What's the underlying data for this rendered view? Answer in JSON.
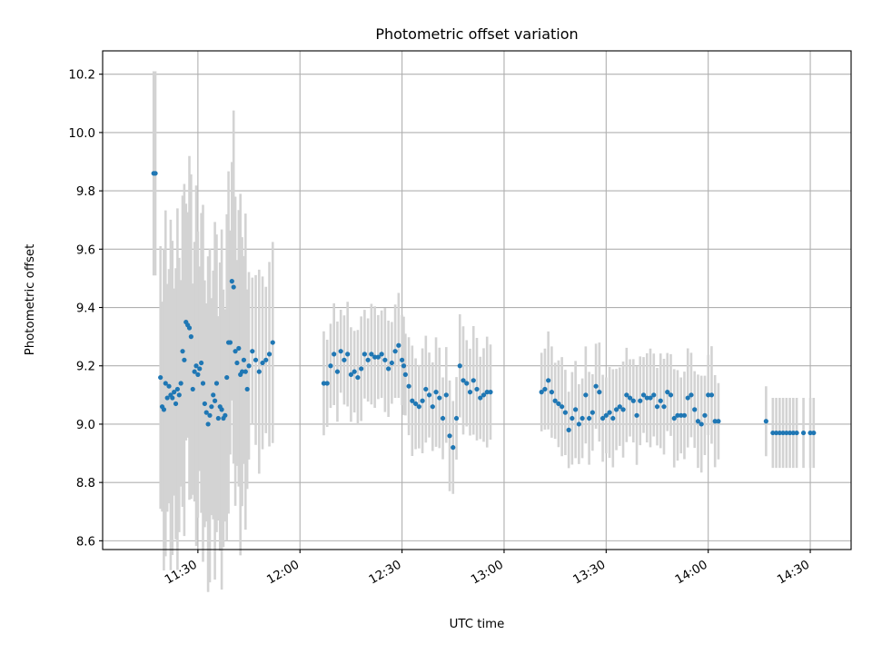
{
  "chart_data": {
    "type": "scatter",
    "title": "Photometric offset variation",
    "xlabel": "UTC time",
    "ylabel": "Photometric offset",
    "x_unit": "minutes past midnight UTC",
    "xlim": [
      "11:02",
      "14:42"
    ],
    "ylim": [
      8.57,
      10.28
    ],
    "x_ticks": [
      "11:30",
      "12:00",
      "12:30",
      "13:00",
      "13:30",
      "14:00",
      "14:30"
    ],
    "y_ticks": [
      "8.6",
      "8.8",
      "9.0",
      "9.2",
      "9.4",
      "9.6",
      "9.8",
      "10.0",
      "10.2"
    ],
    "grid": true,
    "point_color": "#1f77b4",
    "errorbar_color": "#d3d3d3",
    "segments": [
      {
        "start": "11:17",
        "end": "11:44",
        "error": [
          0.35,
          0.62
        ],
        "points": [
          [
            "11:17",
            9.86
          ],
          [
            "11:17.5",
            9.86
          ],
          [
            "11:19",
            9.16
          ],
          [
            "11:19.5",
            9.06
          ],
          [
            "11:20",
            9.05
          ],
          [
            "11:20.5",
            9.14
          ],
          [
            "11:21",
            9.09
          ],
          [
            "11:21.5",
            9.13
          ],
          [
            "11:22",
            9.1
          ],
          [
            "11:22.5",
            9.09
          ],
          [
            "11:23",
            9.11
          ],
          [
            "11:23.5",
            9.07
          ],
          [
            "11:24",
            9.12
          ],
          [
            "11:24.5",
            9.1
          ],
          [
            "11:25",
            9.14
          ],
          [
            "11:25.5",
            9.25
          ],
          [
            "11:26",
            9.22
          ],
          [
            "11:26.5",
            9.35
          ],
          [
            "11:27",
            9.34
          ],
          [
            "11:27.5",
            9.33
          ],
          [
            "11:28",
            9.3
          ],
          [
            "11:28.5",
            9.12
          ],
          [
            "11:29",
            9.18
          ],
          [
            "11:29.5",
            9.2
          ],
          [
            "11:30",
            9.17
          ],
          [
            "11:30.5",
            9.19
          ],
          [
            "11:31",
            9.21
          ],
          [
            "11:31.5",
            9.14
          ],
          [
            "11:32",
            9.07
          ],
          [
            "11:32.5",
            9.04
          ],
          [
            "11:33",
            9.0
          ],
          [
            "11:33.5",
            9.03
          ],
          [
            "11:34",
            9.06
          ],
          [
            "11:34.5",
            9.1
          ],
          [
            "11:35",
            9.08
          ],
          [
            "11:35.5",
            9.14
          ],
          [
            "11:36",
            9.02
          ],
          [
            "11:36.5",
            9.06
          ],
          [
            "11:37",
            9.05
          ],
          [
            "11:37.5",
            9.02
          ],
          [
            "11:38",
            9.03
          ],
          [
            "11:38.5",
            9.16
          ],
          [
            "11:39",
            9.28
          ],
          [
            "11:39.5",
            9.28
          ],
          [
            "11:40",
            9.49
          ],
          [
            "11:40.5",
            9.47
          ],
          [
            "11:41",
            9.25
          ],
          [
            "11:41.5",
            9.21
          ],
          [
            "11:42",
            9.26
          ],
          [
            "11:42.5",
            9.17
          ],
          [
            "11:43",
            9.18
          ],
          [
            "11:43.5",
            9.22
          ],
          [
            "11:44",
            9.18
          ]
        ]
      },
      {
        "start": "11:44",
        "end": "11:52",
        "error": [
          0.25,
          0.35
        ],
        "points": [
          [
            "11:44.5",
            9.12
          ],
          [
            "11:45",
            9.2
          ],
          [
            "11:46",
            9.25
          ],
          [
            "11:47",
            9.22
          ],
          [
            "11:48",
            9.18
          ],
          [
            "11:49",
            9.21
          ],
          [
            "11:50",
            9.22
          ],
          [
            "11:51",
            9.24
          ],
          [
            "11:52",
            9.28
          ]
        ]
      },
      {
        "start": "12:07",
        "end": "12:30",
        "error": [
          0.14,
          0.18
        ],
        "points": [
          [
            "12:07",
            9.14
          ],
          [
            "12:08",
            9.14
          ],
          [
            "12:09",
            9.2
          ],
          [
            "12:10",
            9.24
          ],
          [
            "12:11",
            9.18
          ],
          [
            "12:12",
            9.25
          ],
          [
            "12:13",
            9.22
          ],
          [
            "12:14",
            9.24
          ],
          [
            "12:15",
            9.17
          ],
          [
            "12:16",
            9.18
          ],
          [
            "12:17",
            9.16
          ],
          [
            "12:18",
            9.19
          ],
          [
            "12:19",
            9.24
          ],
          [
            "12:20",
            9.22
          ],
          [
            "12:21",
            9.24
          ],
          [
            "12:22",
            9.23
          ],
          [
            "12:23",
            9.23
          ],
          [
            "12:24",
            9.24
          ],
          [
            "12:25",
            9.22
          ],
          [
            "12:26",
            9.19
          ],
          [
            "12:27",
            9.21
          ],
          [
            "12:28",
            9.25
          ],
          [
            "12:29",
            9.27
          ],
          [
            "12:30",
            9.22
          ]
        ]
      },
      {
        "start": "12:30",
        "end": "12:56",
        "error": [
          0.14,
          0.19
        ],
        "points": [
          [
            "12:30.5",
            9.2
          ],
          [
            "12:31",
            9.17
          ],
          [
            "12:32",
            9.13
          ],
          [
            "12:33",
            9.08
          ],
          [
            "12:34",
            9.07
          ],
          [
            "12:35",
            9.06
          ],
          [
            "12:36",
            9.08
          ],
          [
            "12:37",
            9.12
          ],
          [
            "12:38",
            9.1
          ],
          [
            "12:39",
            9.06
          ],
          [
            "12:40",
            9.11
          ],
          [
            "12:41",
            9.09
          ],
          [
            "12:42",
            9.02
          ],
          [
            "12:43",
            9.1
          ],
          [
            "12:44",
            8.96
          ],
          [
            "12:45",
            8.92
          ],
          [
            "12:46",
            9.02
          ],
          [
            "12:47",
            9.2
          ],
          [
            "12:48",
            9.15
          ],
          [
            "12:49",
            9.14
          ],
          [
            "12:50",
            9.11
          ],
          [
            "12:51",
            9.15
          ],
          [
            "12:52",
            9.12
          ],
          [
            "12:53",
            9.09
          ],
          [
            "12:54",
            9.1
          ],
          [
            "12:55",
            9.11
          ],
          [
            "12:56",
            9.11
          ]
        ]
      },
      {
        "start": "13:11",
        "end": "14:03",
        "error": [
          0.13,
          0.17
        ],
        "points": [
          [
            "13:11",
            9.11
          ],
          [
            "13:12",
            9.12
          ],
          [
            "13:13",
            9.15
          ],
          [
            "13:14",
            9.11
          ],
          [
            "13:15",
            9.08
          ],
          [
            "13:16",
            9.07
          ],
          [
            "13:17",
            9.06
          ],
          [
            "13:18",
            9.04
          ],
          [
            "13:19",
            8.98
          ],
          [
            "13:20",
            9.02
          ],
          [
            "13:21",
            9.05
          ],
          [
            "13:22",
            9.0
          ],
          [
            "13:23",
            9.02
          ],
          [
            "13:24",
            9.1
          ],
          [
            "13:25",
            9.02
          ],
          [
            "13:26",
            9.04
          ],
          [
            "13:27",
            9.13
          ],
          [
            "13:28",
            9.11
          ],
          [
            "13:29",
            9.02
          ],
          [
            "13:30",
            9.03
          ],
          [
            "13:31",
            9.04
          ],
          [
            "13:32",
            9.02
          ],
          [
            "13:33",
            9.05
          ],
          [
            "13:34",
            9.06
          ],
          [
            "13:35",
            9.05
          ],
          [
            "13:36",
            9.1
          ],
          [
            "13:37",
            9.09
          ],
          [
            "13:38",
            9.08
          ],
          [
            "13:39",
            9.03
          ],
          [
            "13:40",
            9.08
          ],
          [
            "13:41",
            9.1
          ],
          [
            "13:42",
            9.09
          ],
          [
            "13:43",
            9.09
          ],
          [
            "13:44",
            9.1
          ],
          [
            "13:45",
            9.06
          ],
          [
            "13:46",
            9.08
          ],
          [
            "13:47",
            9.06
          ],
          [
            "13:48",
            9.11
          ],
          [
            "13:49",
            9.1
          ],
          [
            "13:50",
            9.02
          ],
          [
            "13:51",
            9.03
          ],
          [
            "13:52",
            9.03
          ],
          [
            "13:53",
            9.03
          ],
          [
            "13:54",
            9.09
          ],
          [
            "13:55",
            9.1
          ],
          [
            "13:56",
            9.05
          ],
          [
            "13:57",
            9.01
          ],
          [
            "13:58",
            9.0
          ],
          [
            "13:59",
            9.03
          ],
          [
            "14:00",
            9.1
          ],
          [
            "14:01",
            9.1
          ],
          [
            "14:02",
            9.01
          ],
          [
            "14:03",
            9.01
          ]
        ]
      },
      {
        "start": "14:17",
        "end": "14:32",
        "error": [
          0.12,
          0.12
        ],
        "points": [
          [
            "14:17",
            9.01
          ],
          [
            "14:19",
            8.97
          ],
          [
            "14:20",
            8.97
          ],
          [
            "14:21",
            8.97
          ],
          [
            "14:22",
            8.97
          ],
          [
            "14:23",
            8.97
          ],
          [
            "14:24",
            8.97
          ],
          [
            "14:25",
            8.97
          ],
          [
            "14:26",
            8.97
          ],
          [
            "14:28",
            8.97
          ],
          [
            "14:30",
            8.97
          ],
          [
            "14:31",
            8.97
          ]
        ]
      }
    ]
  }
}
